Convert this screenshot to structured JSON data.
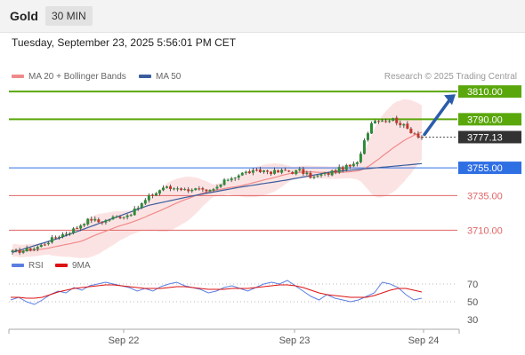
{
  "header": {
    "symbol": "Gold",
    "timeframe": "30 MIN",
    "timestamp": "Tuesday, September 23, 2025 5:56:01 PM CET"
  },
  "legend": {
    "ma20_label": "MA 20 + Bollinger Bands",
    "ma50_label": "MA 50",
    "credit": "Research © 2025 Trading Central",
    "rsi_label": "RSI",
    "rsi_ma_label": "9MA"
  },
  "colors": {
    "resistance": "#5aa70c",
    "current": "#333333",
    "support_primary": "#2f6fe4",
    "support_secondary": "#e06565",
    "ma20": "#f08a8a",
    "bb_fill": "#fbdcdc",
    "ma50": "#3a5d9c",
    "candle_up": "#2e8b3a",
    "candle_down": "#c0392b",
    "rsi": "#5b7fe0",
    "rsi_ma": "#dd1111",
    "arrow": "#2a5caa"
  },
  "chart_data": [
    {
      "type": "candlestick",
      "x_ticks": [
        "Sep 22",
        "Sep 23",
        "Sep 24"
      ],
      "ylim": [
        3700,
        3812
      ],
      "price_levels": [
        {
          "value": "3810.00",
          "kind": "resistance"
        },
        {
          "value": "3790.00",
          "kind": "resistance"
        },
        {
          "value": "3777.13",
          "kind": "current"
        },
        {
          "value": "3755.00",
          "kind": "support"
        },
        {
          "value": "3735.00",
          "kind": "support-secondary"
        },
        {
          "value": "3710.00",
          "kind": "support-secondary"
        }
      ],
      "close_path": [
        3694,
        3695,
        3696,
        3697,
        3699,
        3702,
        3705,
        3707,
        3709,
        3712,
        3716,
        3718,
        3716,
        3717,
        3719,
        3720,
        3721,
        3724,
        3729,
        3734,
        3737,
        3741,
        3740,
        3741,
        3739,
        3740,
        3739,
        3737,
        3739,
        3743,
        3747,
        3749,
        3751,
        3752,
        3752,
        3753,
        3752,
        3752,
        3753,
        3752,
        3753,
        3750,
        3748,
        3750,
        3751,
        3753,
        3755,
        3756,
        3758,
        3775,
        3788,
        3790,
        3789,
        3790,
        3787,
        3783,
        3780,
        3777
      ],
      "ma50_path": [
        3694,
        3704,
        3716,
        3728,
        3735,
        3741,
        3746,
        3752,
        3755,
        3758
      ]
    },
    {
      "type": "line",
      "series": [
        {
          "name": "RSI"
        },
        {
          "name": "9MA"
        }
      ],
      "y_ticks": [
        70,
        50,
        30
      ],
      "ylim": [
        20,
        80
      ],
      "rsi_values": [
        52,
        55,
        50,
        47,
        52,
        58,
        62,
        60,
        66,
        63,
        68,
        70,
        72,
        70,
        68,
        66,
        62,
        65,
        62,
        67,
        70,
        72,
        68,
        66,
        64,
        60,
        62,
        66,
        68,
        65,
        62,
        66,
        70,
        72,
        70,
        74,
        68,
        62,
        56,
        52,
        58,
        54,
        52,
        50,
        52,
        56,
        60,
        72,
        70,
        66,
        58,
        52,
        54
      ],
      "rsi_ma_values": [
        55,
        55,
        54,
        54,
        55,
        58,
        61,
        63,
        65,
        66,
        67,
        68,
        69,
        69,
        68,
        67,
        66,
        65,
        65,
        65,
        66,
        67,
        67,
        66,
        65,
        64,
        64,
        64,
        65,
        65,
        65,
        66,
        67,
        68,
        69,
        69,
        68,
        66,
        63,
        60,
        58,
        57,
        56,
        55,
        55,
        55,
        57,
        60,
        63,
        65,
        65,
        63,
        61
      ]
    }
  ]
}
